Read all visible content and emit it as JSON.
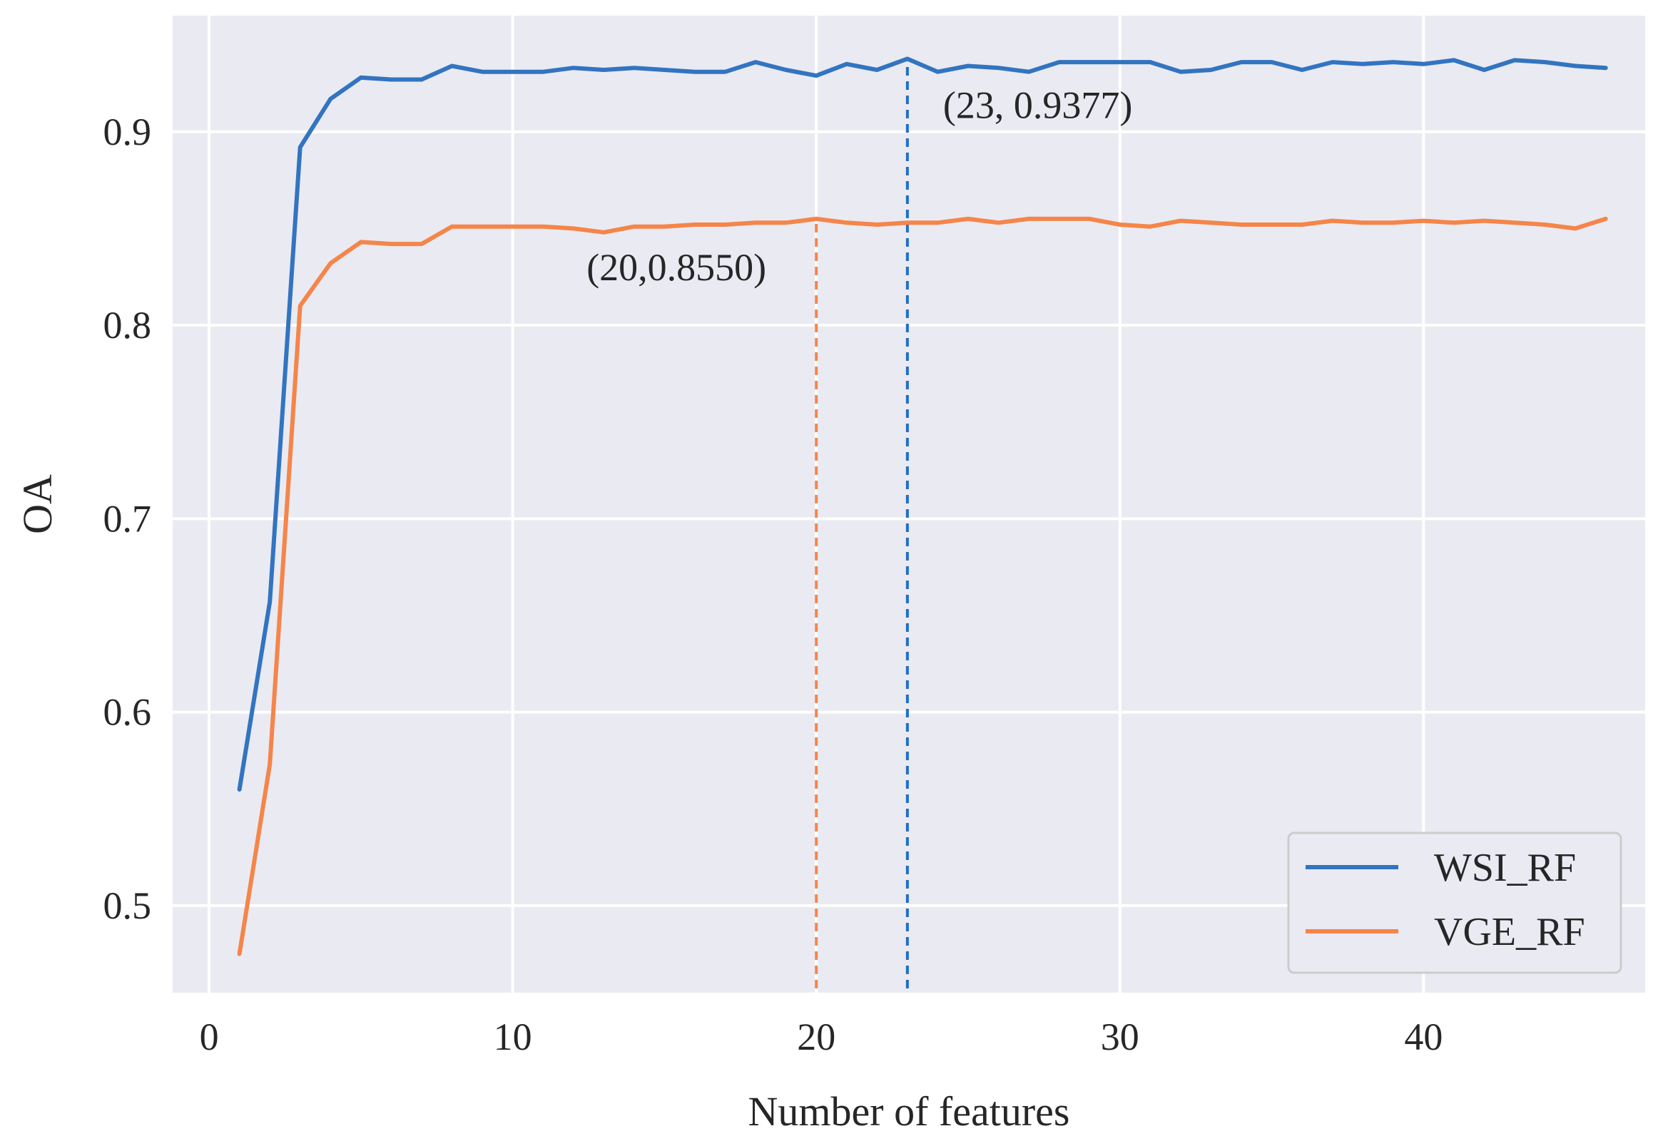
{
  "chart_data": {
    "type": "line",
    "xlabel": "Number of features",
    "ylabel": "OA",
    "xlim": [
      -1.2,
      47.3
    ],
    "ylim": [
      0.455,
      0.96
    ],
    "xticks": [
      0,
      10,
      20,
      30,
      40
    ],
    "yticks": [
      0.5,
      0.6,
      0.7,
      0.8,
      0.9
    ],
    "xtick_labels": [
      "0",
      "10",
      "20",
      "30",
      "40"
    ],
    "ytick_labels": [
      "0.5",
      "0.6",
      "0.7",
      "0.8",
      "0.9"
    ],
    "grid": true,
    "background": "#eaeaf2",
    "legend_position": "lower-right",
    "x": [
      1,
      2,
      3,
      4,
      5,
      6,
      7,
      8,
      9,
      10,
      11,
      12,
      13,
      14,
      15,
      16,
      17,
      18,
      19,
      20,
      21,
      22,
      23,
      24,
      25,
      26,
      27,
      28,
      29,
      30,
      31,
      32,
      33,
      34,
      35,
      36,
      37,
      38,
      39,
      40,
      41,
      42,
      43,
      44,
      45,
      46
    ],
    "series": [
      {
        "name": "WSI_RF",
        "color": "#3274c0",
        "values": [
          0.56,
          0.657,
          0.892,
          0.917,
          0.928,
          0.927,
          0.927,
          0.934,
          0.931,
          0.931,
          0.931,
          0.933,
          0.932,
          0.933,
          0.932,
          0.931,
          0.931,
          0.936,
          0.932,
          0.929,
          0.935,
          0.932,
          0.9377,
          0.931,
          0.934,
          0.933,
          0.931,
          0.936,
          0.936,
          0.936,
          0.936,
          0.931,
          0.932,
          0.936,
          0.936,
          0.932,
          0.936,
          0.935,
          0.936,
          0.935,
          0.937,
          0.932,
          0.937,
          0.936,
          0.934,
          0.933
        ]
      },
      {
        "name": "VGE_RF",
        "color": "#f58549",
        "values": [
          0.475,
          0.573,
          0.81,
          0.832,
          0.843,
          0.842,
          0.842,
          0.851,
          0.851,
          0.851,
          0.851,
          0.85,
          0.848,
          0.851,
          0.851,
          0.852,
          0.852,
          0.853,
          0.853,
          0.855,
          0.853,
          0.852,
          0.853,
          0.853,
          0.855,
          0.853,
          0.855,
          0.855,
          0.855,
          0.852,
          0.851,
          0.854,
          0.853,
          0.852,
          0.852,
          0.852,
          0.854,
          0.853,
          0.853,
          0.854,
          0.853,
          0.854,
          0.853,
          0.852,
          0.85,
          0.855
        ]
      }
    ],
    "vlines": [
      {
        "x": 23,
        "series": "WSI_RF",
        "color": "#1f6fc8",
        "style": "dashed"
      },
      {
        "x": 20,
        "series": "VGE_RF",
        "color": "#f58549",
        "style": "dashed"
      }
    ],
    "annotations": [
      {
        "text": "(23, 0.9377)",
        "x": 23,
        "y": 0.9377
      },
      {
        "text": "(20,0.8550)",
        "x": 20,
        "y": 0.855
      }
    ]
  }
}
